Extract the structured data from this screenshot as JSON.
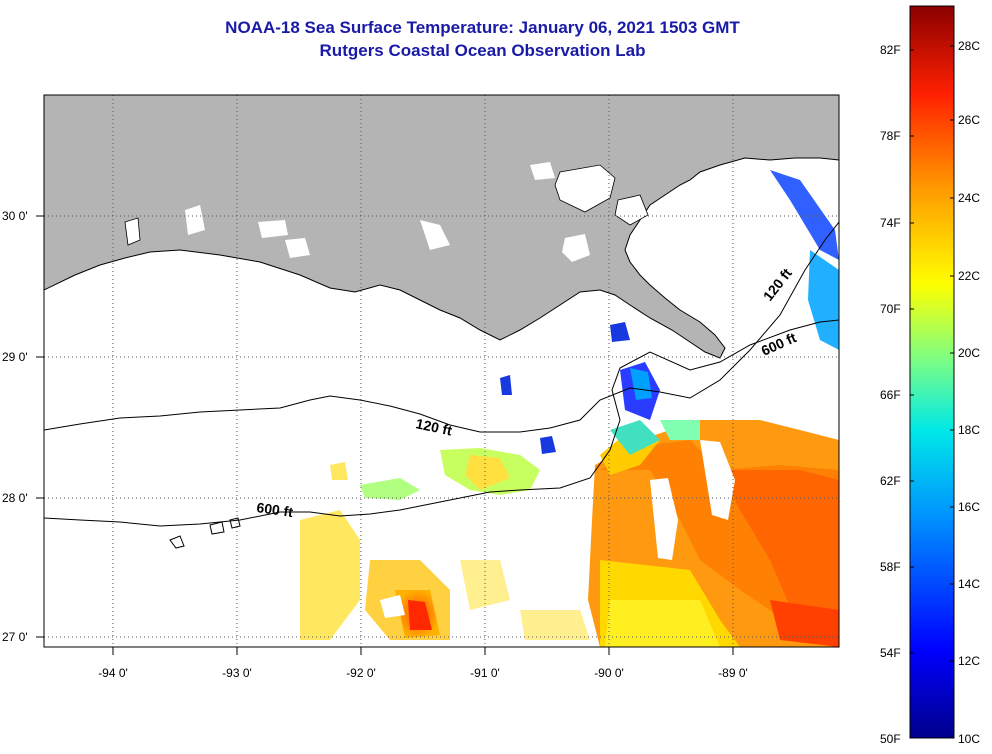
{
  "title": "NOAA-18 Sea Surface Temperature:  January 06, 2021 1503 GMT",
  "subtitle": "Rutgers Coastal Ocean Observation Lab",
  "lat_labels": [
    "30 0'",
    "29 0'",
    "28 0'",
    "27 0'"
  ],
  "lon_labels": [
    "-94 0'",
    "-93 0'",
    "-92 0'",
    "-91 0'",
    "-90 0'",
    "-89 0'"
  ],
  "isobath_labels": [
    {
      "text": "120 ft",
      "depth": "120"
    },
    {
      "text": "600 ft",
      "depth": "600"
    },
    {
      "text": "120 ft",
      "depth": "120"
    },
    {
      "text": "600 ft",
      "depth": "600"
    }
  ],
  "colorbar": {
    "fahrenheit_labels": [
      "82F",
      "78F",
      "74F",
      "70F",
      "66F",
      "62F",
      "58F",
      "54F",
      "50F"
    ],
    "celsius_labels": [
      "28C",
      "26C",
      "24C",
      "22C",
      "20C",
      "18C",
      "16C",
      "14C",
      "12C",
      "10C"
    ],
    "colors": [
      "#8b0000",
      "#ff0000",
      "#ff8000",
      "#ffff00",
      "#80ff80",
      "#00ffff",
      "#0080ff",
      "#0000ff",
      "#00008b"
    ]
  },
  "colors": {
    "land": "#b4b4b4",
    "title": "#1a1aa8",
    "ocean_no_data": "#ffffff"
  }
}
